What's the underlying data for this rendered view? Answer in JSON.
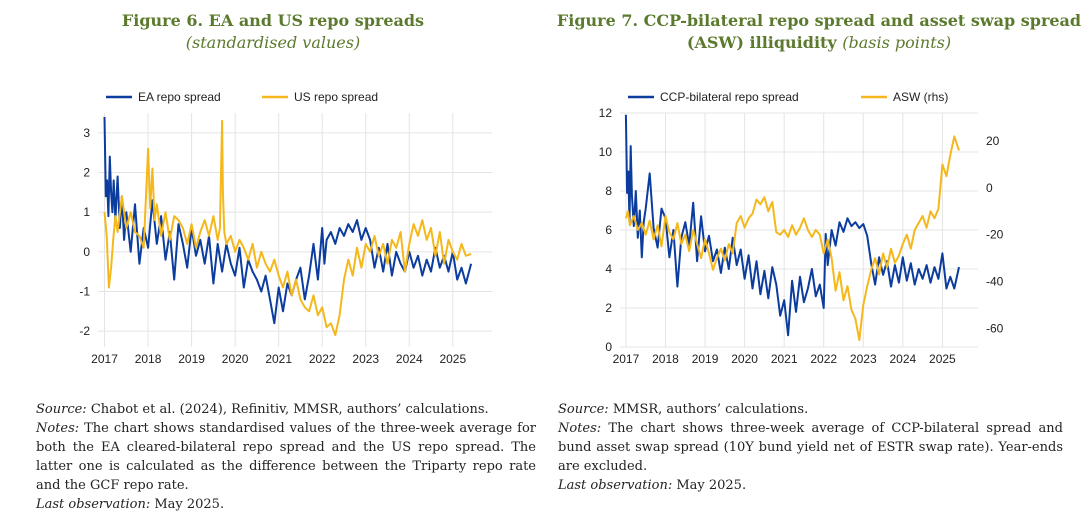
{
  "colors": {
    "title": "#5b7a2e",
    "blue": "#0b3c9e",
    "orange": "#f5b81c",
    "grid": "#e4e4e4"
  },
  "left": {
    "title": "Figure 6. EA and US repo spreads",
    "subtitle": "(standardised values)",
    "source_label": "Source:",
    "source_text": " Chabot et al. (2024), Refinitiv, MMSR, authors’ calculations.",
    "notes_label": "Notes:",
    "notes_text": " The chart shows standardised values of the three-week average for both the EA cleared-bilateral repo spread and the US repo spread. The latter one is calculated as the difference between the Triparty repo rate and the GCF repo rate.",
    "lastobs_label": "Last observation:",
    "lastobs_text": " May 2025."
  },
  "right": {
    "title_line1": "Figure 7. CCP-bilateral repo spread and asset swap spread",
    "title_line2": "(ASW) illiquidity",
    "title_unit": "(basis points)",
    "source_label": "Source:",
    "source_text": " MMSR, authors’ calculations.",
    "notes_label": "Notes:",
    "notes_text": " The chart shows three-week average of CCP-bilateral spread and bund asset swap spread (10Y bund yield net of ESTR swap rate). Year-ends are excluded.",
    "lastobs_label": "Last observation:",
    "lastobs_text": " May 2025."
  },
  "chart_data": [
    {
      "type": "line",
      "x_ticks": [
        "2017",
        "2018",
        "2019",
        "2020",
        "2021",
        "2022",
        "2023",
        "2024",
        "2025"
      ],
      "xlim": [
        2016.85,
        2025.9
      ],
      "ylim": [
        -2.4,
        3.5
      ],
      "y_ticks": [
        -2,
        -1,
        0,
        1,
        2,
        3
      ],
      "grid": true,
      "legend": "top-left",
      "series": [
        {
          "name": "EA repo spread",
          "x": [
            2017.0,
            2017.03,
            2017.06,
            2017.09,
            2017.12,
            2017.15,
            2017.18,
            2017.21,
            2017.25,
            2017.3,
            2017.35,
            2017.4,
            2017.45,
            2017.5,
            2017.6,
            2017.7,
            2017.8,
            2017.9,
            2018.0,
            2018.1,
            2018.2,
            2018.3,
            2018.4,
            2018.5,
            2018.6,
            2018.7,
            2018.8,
            2018.9,
            2019.0,
            2019.1,
            2019.2,
            2019.3,
            2019.4,
            2019.5,
            2019.6,
            2019.7,
            2019.8,
            2019.9,
            2020.0,
            2020.1,
            2020.2,
            2020.3,
            2020.4,
            2020.5,
            2020.6,
            2020.7,
            2020.8,
            2020.9,
            2021.0,
            2021.1,
            2021.2,
            2021.3,
            2021.4,
            2021.5,
            2021.6,
            2021.7,
            2021.8,
            2021.9,
            2022.0,
            2022.05,
            2022.1,
            2022.2,
            2022.3,
            2022.4,
            2022.5,
            2022.6,
            2022.7,
            2022.8,
            2022.9,
            2023.0,
            2023.1,
            2023.2,
            2023.3,
            2023.4,
            2023.5,
            2023.6,
            2023.7,
            2023.8,
            2023.9,
            2024.0,
            2024.1,
            2024.2,
            2024.3,
            2024.4,
            2024.5,
            2024.6,
            2024.7,
            2024.8,
            2024.9,
            2025.0,
            2025.1,
            2025.2,
            2025.3,
            2025.42
          ],
          "values": [
            3.4,
            1.4,
            1.8,
            0.9,
            2.4,
            1.5,
            1.0,
            1.8,
            0.8,
            1.9,
            0.6,
            1.4,
            0.3,
            1.0,
            0.0,
            1.2,
            -0.3,
            0.6,
            0.1,
            1.3,
            0.2,
            0.9,
            -0.2,
            0.5,
            -0.7,
            0.7,
            0.2,
            -0.4,
            0.6,
            -0.1,
            0.3,
            -0.3,
            0.4,
            -0.8,
            0.2,
            -0.5,
            0.2,
            -0.3,
            -0.6,
            0.1,
            -0.9,
            -0.2,
            -0.5,
            -0.7,
            -1.0,
            -0.6,
            -1.2,
            -1.8,
            -0.9,
            -1.5,
            -0.8,
            -1.1,
            -0.7,
            -0.4,
            -1.2,
            -0.6,
            0.2,
            -0.7,
            0.6,
            -0.3,
            0.3,
            0.5,
            0.2,
            0.6,
            0.4,
            0.7,
            0.5,
            0.8,
            0.3,
            0.6,
            0.3,
            -0.4,
            0.1,
            -0.5,
            0.2,
            -0.6,
            0.0,
            -0.3,
            -0.5,
            0.0,
            -0.4,
            -0.1,
            -0.6,
            -0.2,
            -0.5,
            0.1,
            -0.4,
            -0.1,
            -0.5,
            0.0,
            -0.7,
            -0.4,
            -0.8,
            -0.3
          ]
        },
        {
          "name": "US repo spread",
          "x": [
            2017.0,
            2017.05,
            2017.1,
            2017.15,
            2017.2,
            2017.25,
            2017.3,
            2017.4,
            2017.5,
            2017.6,
            2017.7,
            2017.8,
            2017.9,
            2018.0,
            2018.05,
            2018.1,
            2018.15,
            2018.2,
            2018.3,
            2018.4,
            2018.5,
            2018.6,
            2018.7,
            2018.8,
            2018.9,
            2019.0,
            2019.1,
            2019.2,
            2019.3,
            2019.4,
            2019.5,
            2019.6,
            2019.65,
            2019.7,
            2019.72,
            2019.75,
            2019.8,
            2019.9,
            2020.0,
            2020.1,
            2020.2,
            2020.3,
            2020.4,
            2020.5,
            2020.6,
            2020.7,
            2020.8,
            2020.9,
            2021.0,
            2021.1,
            2021.2,
            2021.3,
            2021.4,
            2021.5,
            2021.6,
            2021.7,
            2021.8,
            2021.9,
            2022.0,
            2022.1,
            2022.2,
            2022.3,
            2022.4,
            2022.5,
            2022.6,
            2022.7,
            2022.8,
            2022.9,
            2023.0,
            2023.1,
            2023.2,
            2023.3,
            2023.4,
            2023.5,
            2023.6,
            2023.7,
            2023.8,
            2023.9,
            2024.0,
            2024.1,
            2024.2,
            2024.3,
            2024.4,
            2024.5,
            2024.6,
            2024.7,
            2024.8,
            2024.9,
            2025.0,
            2025.1,
            2025.2,
            2025.3,
            2025.42
          ],
          "values": [
            1.0,
            0.4,
            -0.9,
            -0.4,
            0.3,
            0.9,
            0.5,
            1.4,
            0.6,
            1.0,
            0.5,
            0.4,
            0.1,
            2.6,
            1.1,
            2.1,
            0.8,
            1.2,
            0.4,
            1.0,
            0.3,
            0.9,
            0.8,
            0.6,
            0.2,
            0.7,
            0.1,
            0.5,
            0.8,
            0.4,
            0.9,
            0.3,
            0.6,
            3.3,
            1.5,
            0.5,
            0.2,
            0.4,
            0.0,
            0.3,
            0.1,
            -0.2,
            0.2,
            -0.4,
            0.0,
            -0.3,
            -0.5,
            -0.2,
            -0.6,
            -0.9,
            -0.5,
            -1.1,
            -0.7,
            -1.2,
            -1.4,
            -1.5,
            -1.1,
            -1.6,
            -1.4,
            -1.9,
            -1.8,
            -2.1,
            -1.6,
            -0.7,
            -0.2,
            -0.6,
            0.1,
            -0.4,
            0.2,
            0.0,
            0.4,
            -0.1,
            0.2,
            -0.3,
            0.3,
            0.1,
            0.5,
            -0.5,
            0.2,
            0.7,
            0.4,
            0.8,
            0.3,
            0.6,
            -0.1,
            0.5,
            -0.3,
            0.3,
            0.0,
            -0.2,
            0.2,
            -0.1,
            -0.05
          ]
        }
      ]
    },
    {
      "type": "line",
      "x_ticks": [
        "2017",
        "2018",
        "2019",
        "2020",
        "2021",
        "2022",
        "2023",
        "2024",
        "2025"
      ],
      "xlim": [
        2016.85,
        2025.9
      ],
      "ylim": [
        0,
        12
      ],
      "y_ticks": [
        0,
        2,
        4,
        6,
        8,
        10,
        12
      ],
      "y2lim": [
        -68,
        32
      ],
      "y2_ticks": [
        -60,
        -40,
        -20,
        0,
        20
      ],
      "grid": true,
      "legend": "top-left",
      "series": [
        {
          "name": "CCP-bilateral repo spread",
          "axis": "left",
          "x": [
            2017.0,
            2017.03,
            2017.06,
            2017.09,
            2017.12,
            2017.15,
            2017.2,
            2017.25,
            2017.3,
            2017.35,
            2017.4,
            2017.45,
            2017.5,
            2017.6,
            2017.7,
            2017.8,
            2017.9,
            2018.0,
            2018.1,
            2018.2,
            2018.3,
            2018.4,
            2018.5,
            2018.6,
            2018.7,
            2018.8,
            2018.9,
            2019.0,
            2019.1,
            2019.2,
            2019.3,
            2019.4,
            2019.5,
            2019.6,
            2019.7,
            2019.8,
            2019.9,
            2020.0,
            2020.1,
            2020.2,
            2020.3,
            2020.4,
            2020.5,
            2020.6,
            2020.7,
            2020.8,
            2020.9,
            2021.0,
            2021.1,
            2021.2,
            2021.3,
            2021.4,
            2021.5,
            2021.6,
            2021.7,
            2021.8,
            2021.9,
            2022.0,
            2022.05,
            2022.1,
            2022.2,
            2022.3,
            2022.4,
            2022.5,
            2022.6,
            2022.7,
            2022.8,
            2022.9,
            2023.0,
            2023.1,
            2023.2,
            2023.3,
            2023.4,
            2023.5,
            2023.6,
            2023.7,
            2023.8,
            2023.9,
            2024.0,
            2024.1,
            2024.2,
            2024.3,
            2024.4,
            2024.5,
            2024.6,
            2024.7,
            2024.8,
            2024.9,
            2025.0,
            2025.1,
            2025.2,
            2025.3,
            2025.42
          ],
          "values": [
            11.9,
            7.9,
            9.0,
            6.4,
            10.3,
            7.8,
            6.2,
            8.0,
            5.6,
            7.0,
            4.6,
            6.4,
            7.1,
            8.9,
            6.1,
            5.1,
            7.1,
            6.6,
            4.6,
            6.0,
            3.1,
            5.6,
            6.4,
            5.2,
            7.4,
            4.4,
            6.7,
            4.9,
            5.7,
            4.4,
            5.0,
            3.8,
            5.1,
            4.0,
            5.6,
            4.2,
            5.0,
            3.5,
            4.7,
            3.0,
            4.4,
            2.7,
            3.9,
            2.5,
            4.1,
            3.2,
            1.6,
            2.4,
            0.6,
            3.4,
            1.8,
            3.6,
            2.3,
            3.0,
            4.0,
            2.6,
            3.2,
            2.0,
            5.8,
            4.2,
            6.0,
            5.2,
            6.4,
            5.9,
            6.6,
            6.2,
            6.4,
            6.1,
            6.3,
            5.7,
            4.3,
            3.2,
            4.6,
            3.7,
            4.4,
            3.1,
            4.2,
            3.3,
            4.6,
            3.4,
            4.3,
            3.2,
            4.0,
            3.5,
            4.2,
            3.3,
            4.1,
            3.5,
            4.8,
            3.0,
            3.6,
            3.0,
            4.1
          ]
        },
        {
          "name": "ASW (rhs)",
          "axis": "right",
          "x": [
            2017.0,
            2017.05,
            2017.1,
            2017.2,
            2017.3,
            2017.4,
            2017.5,
            2017.6,
            2017.7,
            2017.8,
            2017.9,
            2018.0,
            2018.1,
            2018.2,
            2018.3,
            2018.4,
            2018.5,
            2018.6,
            2018.7,
            2018.8,
            2018.9,
            2019.0,
            2019.1,
            2019.2,
            2019.3,
            2019.4,
            2019.5,
            2019.6,
            2019.7,
            2019.8,
            2019.9,
            2020.0,
            2020.1,
            2020.2,
            2020.3,
            2020.4,
            2020.5,
            2020.6,
            2020.7,
            2020.8,
            2020.9,
            2021.0,
            2021.1,
            2021.2,
            2021.3,
            2021.4,
            2021.5,
            2021.6,
            2021.7,
            2021.8,
            2021.9,
            2022.0,
            2022.1,
            2022.2,
            2022.3,
            2022.4,
            2022.5,
            2022.6,
            2022.7,
            2022.8,
            2022.9,
            2023.0,
            2023.1,
            2023.2,
            2023.3,
            2023.4,
            2023.5,
            2023.6,
            2023.7,
            2023.8,
            2023.9,
            2024.0,
            2024.1,
            2024.2,
            2024.3,
            2024.4,
            2024.5,
            2024.6,
            2024.7,
            2024.8,
            2024.9,
            2025.0,
            2025.1,
            2025.2,
            2025.3,
            2025.42
          ],
          "values": [
            -13,
            -10,
            -16,
            -12,
            -18,
            -15,
            -20,
            -14,
            -22,
            -16,
            -25,
            -12,
            -19,
            -22,
            -15,
            -24,
            -20,
            -27,
            -18,
            -24,
            -30,
            -22,
            -28,
            -35,
            -30,
            -26,
            -31,
            -24,
            -28,
            -15,
            -12,
            -17,
            -13,
            -11,
            -5,
            -7,
            -4,
            -10,
            -6,
            -19,
            -20,
            -18,
            -21,
            -16,
            -20,
            -17,
            -13,
            -18,
            -21,
            -18,
            -20,
            -28,
            -22,
            -30,
            -44,
            -36,
            -48,
            -42,
            -52,
            -56,
            -65,
            -50,
            -42,
            -35,
            -30,
            -37,
            -28,
            -34,
            -26,
            -32,
            -29,
            -24,
            -20,
            -26,
            -18,
            -15,
            -12,
            -17,
            -10,
            -13,
            -9,
            10,
            5,
            14,
            22,
            16
          ]
        }
      ]
    }
  ]
}
